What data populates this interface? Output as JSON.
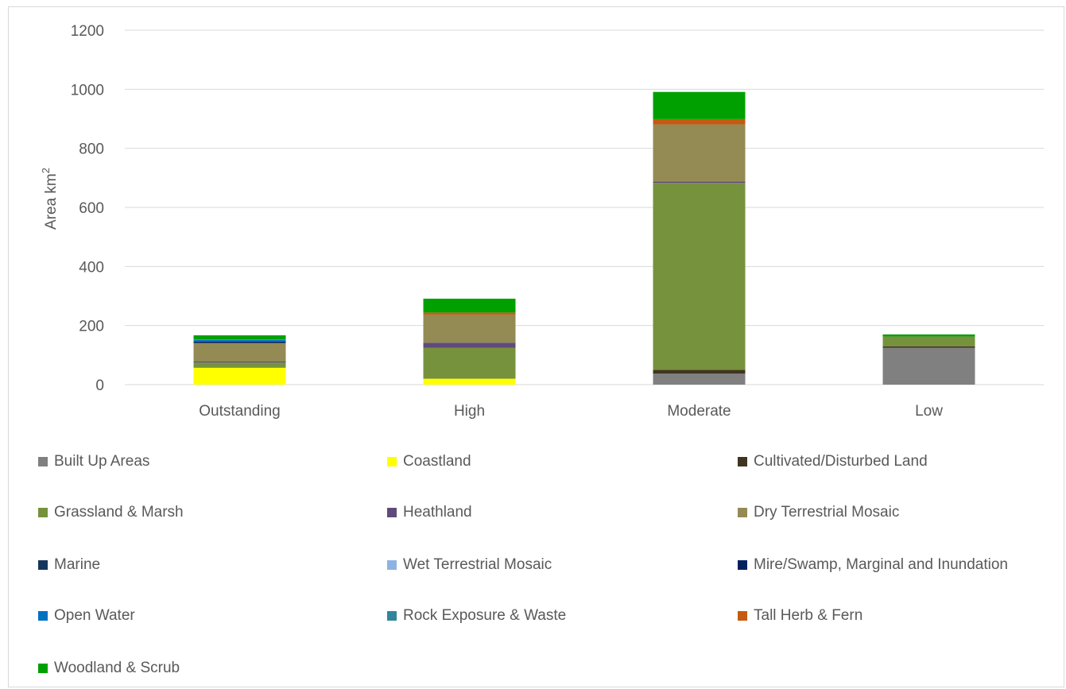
{
  "chart_data": {
    "type": "bar",
    "stacked": true,
    "ylabel": "Area km",
    "ylabel_superscript": "2",
    "ylim": [
      0,
      1200
    ],
    "yticks": [
      "0",
      "200",
      "400",
      "600",
      "800",
      "1000",
      "1200"
    ],
    "grid": true,
    "legend_position": "bottom",
    "categories": [
      "Outstanding",
      "High",
      "Moderate",
      "Low"
    ],
    "series": [
      {
        "name": "Built Up Areas",
        "color": "#808080",
        "values": [
          0,
          0,
          37,
          125
        ]
      },
      {
        "name": "Coastland",
        "color": "#ffff00",
        "values": [
          57,
          20,
          0,
          0
        ]
      },
      {
        "name": "Cultivated/Disturbed Land",
        "color": "#403520",
        "values": [
          0,
          0,
          13,
          5
        ]
      },
      {
        "name": "Grassland & Marsh",
        "color": "#76923c",
        "values": [
          18,
          105,
          633,
          33
        ]
      },
      {
        "name": "Heathland",
        "color": "#604a7b",
        "values": [
          4,
          17,
          5,
          0
        ]
      },
      {
        "name": "Dry Terrestrial Mosaic",
        "color": "#948a54",
        "values": [
          62,
          95,
          193,
          0
        ]
      },
      {
        "name": "Marine",
        "color": "#17365d",
        "values": [
          0,
          0,
          0,
          0
        ]
      },
      {
        "name": "Wet Terrestrial Mosaic",
        "color": "#8db3e2",
        "values": [
          0,
          0,
          0,
          0
        ]
      },
      {
        "name": "Mire/Swamp, Marginal and Inundation",
        "color": "#002060",
        "values": [
          5,
          0,
          0,
          0
        ]
      },
      {
        "name": "Open Water",
        "color": "#0070c0",
        "values": [
          5,
          0,
          0,
          0
        ]
      },
      {
        "name": "Rock Exposure & Waste",
        "color": "#31859c",
        "values": [
          2,
          0,
          0,
          0
        ]
      },
      {
        "name": "Tall Herb & Fern",
        "color": "#c55a11",
        "values": [
          0,
          7,
          18,
          0
        ]
      },
      {
        "name": "Woodland & Scrub",
        "color": "#00a000",
        "values": [
          14,
          47,
          92,
          7
        ]
      }
    ]
  }
}
